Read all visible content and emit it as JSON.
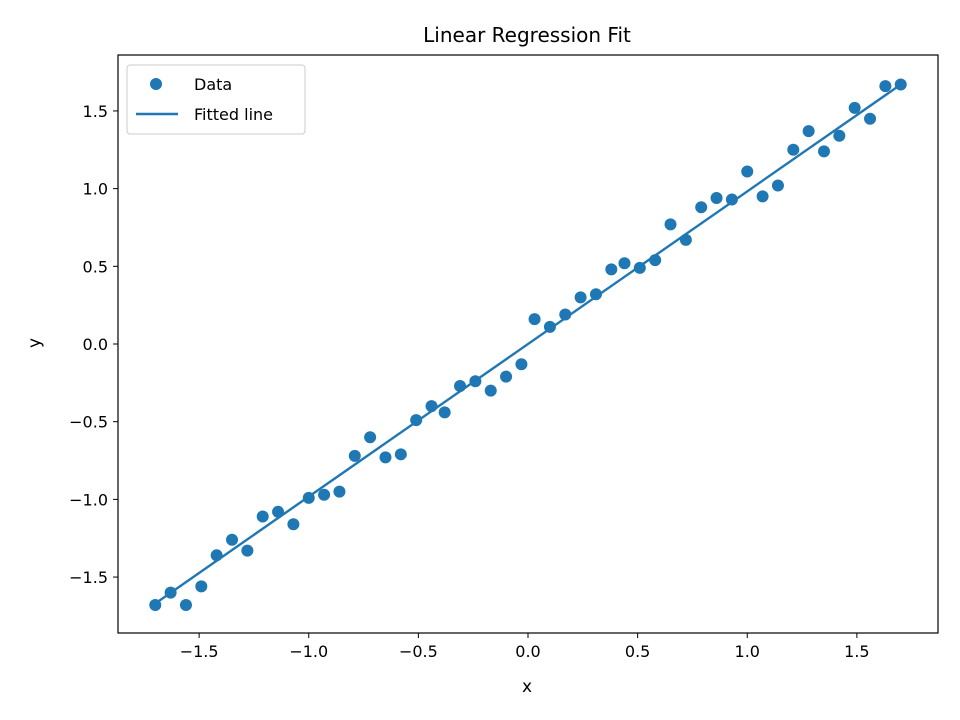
{
  "chart_data": {
    "type": "scatter",
    "title": "Linear Regression Fit",
    "xlabel": "x",
    "ylabel": "y",
    "xlim": [
      -1.87,
      1.87
    ],
    "ylim": [
      -1.86,
      1.86
    ],
    "xticks": [
      -1.5,
      -1.0,
      -0.5,
      0.0,
      0.5,
      1.0,
      1.5
    ],
    "xtick_labels": [
      "−1.5",
      "−1.0",
      "−0.5",
      "0.0",
      "0.5",
      "1.0",
      "1.5"
    ],
    "yticks": [
      -1.5,
      -1.0,
      -0.5,
      0.0,
      0.5,
      1.0,
      1.5
    ],
    "ytick_labels": [
      "−1.5",
      "−1.0",
      "−0.5",
      "0.0",
      "0.5",
      "1.0",
      "1.5"
    ],
    "grid": false,
    "legend_position": "top-left",
    "color": "#1f77b4",
    "series": [
      {
        "name": "Data",
        "kind": "scatter",
        "x": [
          -1.7,
          -1.63,
          -1.56,
          -1.49,
          -1.42,
          -1.35,
          -1.28,
          -1.21,
          -1.14,
          -1.07,
          -1.0,
          -0.93,
          -0.86,
          -0.79,
          -0.72,
          -0.65,
          -0.58,
          -0.51,
          -0.44,
          -0.38,
          -0.31,
          -0.24,
          -0.17,
          -0.1,
          -0.03,
          0.03,
          0.1,
          0.17,
          0.24,
          0.31,
          0.38,
          0.44,
          0.51,
          0.58,
          0.65,
          0.72,
          0.79,
          0.86,
          0.93,
          1.0,
          1.07,
          1.14,
          1.21,
          1.28,
          1.35,
          1.42,
          1.49,
          1.56,
          1.63,
          1.7
        ],
        "y": [
          -1.68,
          -1.6,
          -1.68,
          -1.56,
          -1.36,
          -1.26,
          -1.33,
          -1.11,
          -1.08,
          -1.16,
          -0.99,
          -0.97,
          -0.95,
          -0.72,
          -0.6,
          -0.73,
          -0.71,
          -0.49,
          -0.4,
          -0.44,
          -0.27,
          -0.24,
          -0.3,
          -0.21,
          -0.13,
          0.16,
          0.11,
          0.19,
          0.3,
          0.32,
          0.48,
          0.52,
          0.49,
          0.54,
          0.77,
          0.67,
          0.88,
          0.94,
          0.93,
          1.11,
          0.95,
          1.02,
          1.25,
          1.37,
          1.24,
          1.34,
          1.52,
          1.45,
          1.66,
          1.67
        ]
      },
      {
        "name": "Fitted line",
        "kind": "line",
        "x": [
          -1.7,
          1.7
        ],
        "y": [
          -1.67,
          1.67
        ]
      }
    ]
  }
}
